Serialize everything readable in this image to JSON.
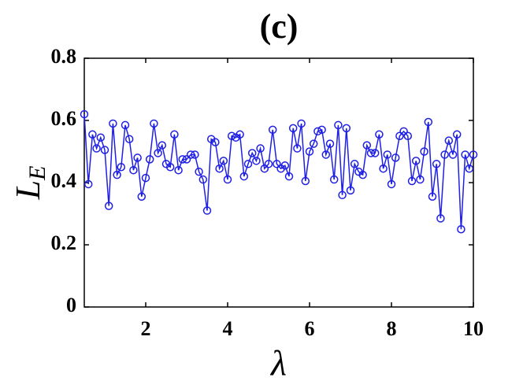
{
  "chart_data": {
    "type": "line",
    "title": "(c)",
    "xlabel": "λ",
    "ylabel": {
      "text": "L",
      "subscript": "E"
    },
    "x": [
      0.5,
      0.6,
      0.7,
      0.8,
      0.9,
      1.0,
      1.1,
      1.2,
      1.3,
      1.4,
      1.5,
      1.6,
      1.7,
      1.8,
      1.9,
      2.0,
      2.1,
      2.2,
      2.3,
      2.4,
      2.5,
      2.6,
      2.7,
      2.8,
      2.9,
      3.0,
      3.1,
      3.2,
      3.3,
      3.4,
      3.5,
      3.6,
      3.7,
      3.8,
      3.9,
      4.0,
      4.1,
      4.2,
      4.3,
      4.4,
      4.5,
      4.6,
      4.7,
      4.8,
      4.9,
      5.0,
      5.1,
      5.2,
      5.3,
      5.4,
      5.5,
      5.6,
      5.7,
      5.8,
      5.9,
      6.0,
      6.1,
      6.2,
      6.3,
      6.4,
      6.5,
      6.6,
      6.7,
      6.8,
      6.9,
      7.0,
      7.1,
      7.2,
      7.3,
      7.4,
      7.5,
      7.6,
      7.7,
      7.8,
      7.9,
      8.0,
      8.1,
      8.2,
      8.3,
      8.4,
      8.5,
      8.6,
      8.7,
      8.8,
      8.9,
      9.0,
      9.1,
      9.2,
      9.3,
      9.4,
      9.5,
      9.6,
      9.7,
      9.8,
      9.9,
      10.0
    ],
    "series": [
      {
        "color": "#1f1fe6",
        "values": [
          0.62,
          0.395,
          0.555,
          0.51,
          0.545,
          0.505,
          0.325,
          0.59,
          0.425,
          0.45,
          0.585,
          0.54,
          0.44,
          0.48,
          0.355,
          0.415,
          0.475,
          0.59,
          0.495,
          0.52,
          0.46,
          0.45,
          0.555,
          0.44,
          0.475,
          0.475,
          0.49,
          0.49,
          0.435,
          0.41,
          0.31,
          0.54,
          0.53,
          0.445,
          0.47,
          0.41,
          0.55,
          0.545,
          0.555,
          0.42,
          0.46,
          0.495,
          0.47,
          0.51,
          0.445,
          0.46,
          0.57,
          0.46,
          0.445,
          0.455,
          0.42,
          0.575,
          0.51,
          0.59,
          0.405,
          0.5,
          0.525,
          0.565,
          0.57,
          0.49,
          0.525,
          0.41,
          0.585,
          0.36,
          0.575,
          0.375,
          0.46,
          0.435,
          0.425,
          0.52,
          0.495,
          0.495,
          0.555,
          0.445,
          0.49,
          0.395,
          0.48,
          0.55,
          0.565,
          0.55,
          0.405,
          0.47,
          0.41,
          0.5,
          0.595,
          0.355,
          0.46,
          0.285,
          0.49,
          0.535,
          0.49,
          0.555,
          0.25,
          0.49,
          0.445,
          0.49
        ]
      }
    ],
    "xlim": [
      0.5,
      10
    ],
    "ylim": [
      0,
      0.8
    ],
    "xticks": [
      2,
      4,
      6,
      8,
      10
    ],
    "yticks": [
      0,
      0.2,
      0.4,
      0.6,
      0.8
    ]
  }
}
